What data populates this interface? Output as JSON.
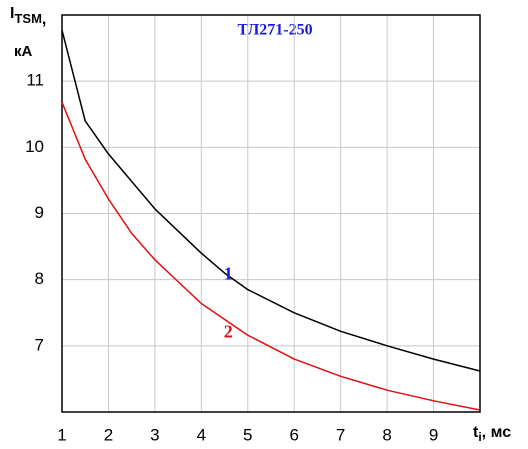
{
  "chart_data": {
    "type": "line",
    "title": "ТЛ271-250",
    "y_label": [
      "I",
      "TSM",
      ","
    ],
    "y_unit": "кА",
    "x_label": [
      "t",
      "i",
      ", мс"
    ],
    "xlim": [
      1,
      10
    ],
    "ylim": [
      6,
      12
    ],
    "xticks": [
      1,
      2,
      3,
      4,
      5,
      6,
      7,
      8,
      9
    ],
    "yticks": [
      7,
      8,
      9,
      10,
      11
    ],
    "grid": true,
    "series": [
      {
        "name": "1",
        "color": "#000000",
        "label_color": "#1a1adb",
        "x": [
          1,
          1.5,
          2,
          3,
          4,
          4.5,
          5,
          6,
          7,
          8,
          9,
          10
        ],
        "values": [
          11.77,
          10.4,
          9.9,
          9.07,
          8.4,
          8.1,
          7.85,
          7.5,
          7.22,
          7.0,
          6.8,
          6.62
        ]
      },
      {
        "name": "2",
        "color": "#e01010",
        "label_color": "#e01010",
        "x": [
          1,
          1.5,
          2,
          2.5,
          3,
          4,
          5,
          6,
          7,
          8,
          9,
          10
        ],
        "values": [
          10.68,
          9.82,
          9.22,
          8.7,
          8.3,
          7.64,
          7.16,
          6.8,
          6.54,
          6.33,
          6.17,
          6.03
        ]
      }
    ]
  }
}
